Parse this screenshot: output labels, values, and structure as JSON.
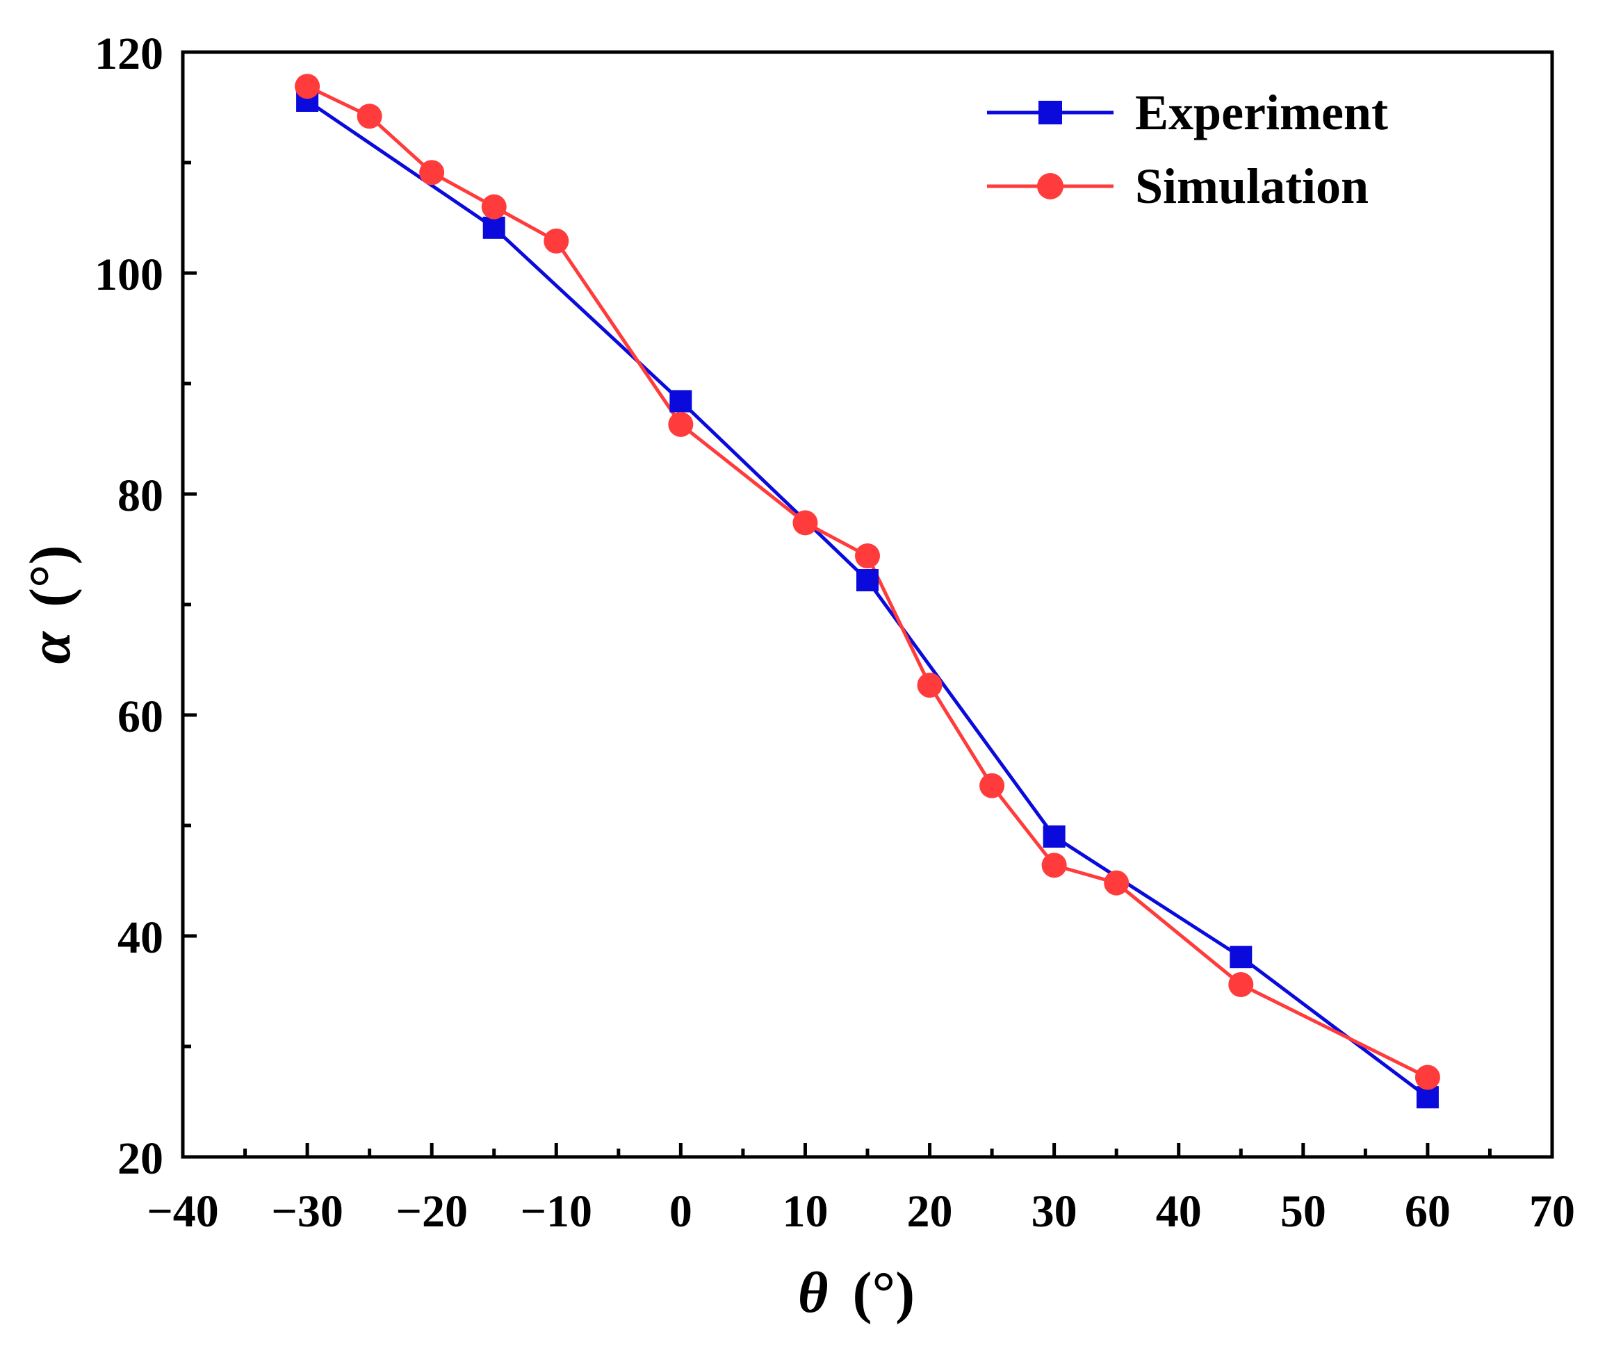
{
  "chart_data": {
    "type": "line",
    "title": "",
    "xlabel_symbol": "θ",
    "xlabel_unit": "(°)",
    "ylabel_symbol": "α",
    "ylabel_unit": "(°)",
    "xlim": [
      -40,
      70
    ],
    "ylim": [
      20,
      120
    ],
    "x_ticks": [
      -40,
      -30,
      -20,
      -10,
      0,
      10,
      20,
      30,
      40,
      50,
      60,
      70
    ],
    "x_tick_labels": [
      "−40",
      "−30",
      "−20",
      "−10",
      "0",
      "10",
      "20",
      "30",
      "40",
      "50",
      "60",
      "70"
    ],
    "x_minor_ticks": [
      -35,
      -25,
      -15,
      -5,
      5,
      15,
      25,
      35,
      45,
      55,
      65
    ],
    "y_ticks": [
      20,
      40,
      60,
      80,
      100,
      120
    ],
    "y_tick_labels": [
      "20",
      "40",
      "60",
      "80",
      "100",
      "120"
    ],
    "y_minor_ticks": [
      30,
      50,
      70,
      90,
      110
    ],
    "grid": false,
    "legend_position": "top-right",
    "series": [
      {
        "name": "Experiment",
        "color": "#0a0adc",
        "marker": "square",
        "x": [
          -30,
          -15,
          0,
          15,
          30,
          45,
          60
        ],
        "y": [
          115.6,
          104.1,
          88.4,
          72.2,
          49.0,
          38.1,
          25.4
        ]
      },
      {
        "name": "Simulation",
        "color": "#ff3b3b",
        "marker": "circle",
        "x": [
          -30,
          -25,
          -20,
          -15,
          -10,
          0,
          10,
          15,
          20,
          25,
          30,
          35,
          45,
          60
        ],
        "y": [
          116.9,
          114.2,
          109.1,
          106.0,
          102.9,
          86.3,
          77.4,
          74.4,
          62.7,
          53.6,
          46.4,
          44.8,
          35.6,
          27.2
        ]
      }
    ]
  }
}
